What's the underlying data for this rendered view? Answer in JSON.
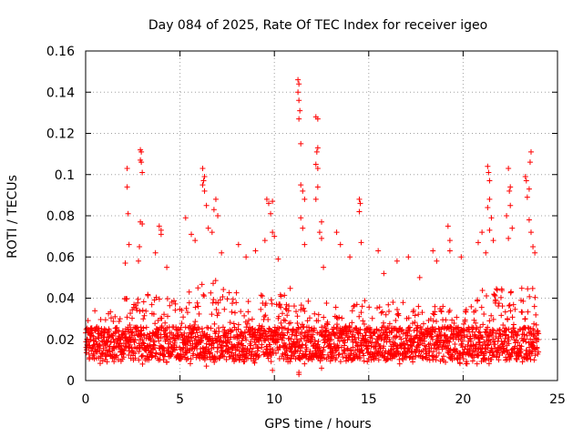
{
  "chart_data": {
    "type": "scatter",
    "title": "Day 084 of 2025, Rate Of TEC Index for receiver igeo",
    "xlabel": "GPS time / hours",
    "ylabel": "ROTI / TECUs",
    "xlim": [
      0,
      25
    ],
    "ylim": [
      0,
      0.16
    ],
    "xticks": [
      0,
      5,
      10,
      15,
      20,
      25
    ],
    "xtick_labels": [
      "0",
      "5",
      "10",
      "15",
      "20",
      "25"
    ],
    "yticks": [
      0,
      0.02,
      0.04,
      0.06,
      0.08,
      0.1,
      0.12,
      0.14,
      0.16
    ],
    "ytick_labels": [
      "0",
      "0.02",
      "0.04",
      "0.06",
      "0.08",
      "0.1",
      "0.12",
      "0.14",
      "0.16"
    ],
    "grid": true,
    "marker": "plus",
    "color": "#ff0000",
    "series": [
      {
        "name": "ROTI",
        "points": [
          [
            2.2,
            0.103
          ],
          [
            2.2,
            0.094
          ],
          [
            2.25,
            0.081
          ],
          [
            2.3,
            0.066
          ],
          [
            2.1,
            0.057
          ],
          [
            2.9,
            0.112
          ],
          [
            2.95,
            0.111
          ],
          [
            2.9,
            0.107
          ],
          [
            2.95,
            0.106
          ],
          [
            3.0,
            0.101
          ],
          [
            2.9,
            0.077
          ],
          [
            3.0,
            0.076
          ],
          [
            2.85,
            0.065
          ],
          [
            2.8,
            0.058
          ],
          [
            3.9,
            0.075
          ],
          [
            4.0,
            0.073
          ],
          [
            4.0,
            0.071
          ],
          [
            3.7,
            0.062
          ],
          [
            4.3,
            0.055
          ],
          [
            5.3,
            0.079
          ],
          [
            5.6,
            0.071
          ],
          [
            5.8,
            0.068
          ],
          [
            6.2,
            0.103
          ],
          [
            6.3,
            0.099
          ],
          [
            6.25,
            0.097
          ],
          [
            6.2,
            0.095
          ],
          [
            6.3,
            0.092
          ],
          [
            6.4,
            0.085
          ],
          [
            6.5,
            0.074
          ],
          [
            6.9,
            0.088
          ],
          [
            6.8,
            0.083
          ],
          [
            7.0,
            0.08
          ],
          [
            6.7,
            0.072
          ],
          [
            7.2,
            0.062
          ],
          [
            8.1,
            0.066
          ],
          [
            8.5,
            0.06
          ],
          [
            9.0,
            0.063
          ],
          [
            9.6,
            0.088
          ],
          [
            9.7,
            0.086
          ],
          [
            9.9,
            0.087
          ],
          [
            9.8,
            0.081
          ],
          [
            9.9,
            0.072
          ],
          [
            10.0,
            0.07
          ],
          [
            9.5,
            0.068
          ],
          [
            10.2,
            0.059
          ],
          [
            11.25,
            0.146
          ],
          [
            11.3,
            0.144
          ],
          [
            11.25,
            0.14
          ],
          [
            11.3,
            0.136
          ],
          [
            11.35,
            0.131
          ],
          [
            11.3,
            0.127
          ],
          [
            11.4,
            0.115
          ],
          [
            11.4,
            0.095
          ],
          [
            11.5,
            0.092
          ],
          [
            11.6,
            0.088
          ],
          [
            11.4,
            0.079
          ],
          [
            11.5,
            0.074
          ],
          [
            11.6,
            0.066
          ],
          [
            12.2,
            0.128
          ],
          [
            12.3,
            0.127
          ],
          [
            12.3,
            0.113
          ],
          [
            12.25,
            0.111
          ],
          [
            12.2,
            0.105
          ],
          [
            12.3,
            0.103
          ],
          [
            12.3,
            0.094
          ],
          [
            12.2,
            0.088
          ],
          [
            12.5,
            0.077
          ],
          [
            12.4,
            0.072
          ],
          [
            12.5,
            0.069
          ],
          [
            12.6,
            0.055
          ],
          [
            13.3,
            0.072
          ],
          [
            13.5,
            0.066
          ],
          [
            14.0,
            0.06
          ],
          [
            14.5,
            0.088
          ],
          [
            14.55,
            0.086
          ],
          [
            14.5,
            0.082
          ],
          [
            14.6,
            0.067
          ],
          [
            15.5,
            0.063
          ],
          [
            15.8,
            0.052
          ],
          [
            16.5,
            0.058
          ],
          [
            17.1,
            0.06
          ],
          [
            17.7,
            0.05
          ],
          [
            18.4,
            0.063
          ],
          [
            18.6,
            0.058
          ],
          [
            19.2,
            0.075
          ],
          [
            19.3,
            0.068
          ],
          [
            19.3,
            0.063
          ],
          [
            19.9,
            0.06
          ],
          [
            20.8,
            0.067
          ],
          [
            21.0,
            0.072
          ],
          [
            21.3,
            0.104
          ],
          [
            21.35,
            0.101
          ],
          [
            21.4,
            0.097
          ],
          [
            21.4,
            0.088
          ],
          [
            21.3,
            0.084
          ],
          [
            21.5,
            0.079
          ],
          [
            21.4,
            0.073
          ],
          [
            21.6,
            0.068
          ],
          [
            21.2,
            0.062
          ],
          [
            22.4,
            0.103
          ],
          [
            22.5,
            0.094
          ],
          [
            22.45,
            0.092
          ],
          [
            22.5,
            0.085
          ],
          [
            22.3,
            0.08
          ],
          [
            22.6,
            0.074
          ],
          [
            22.4,
            0.069
          ],
          [
            23.3,
            0.099
          ],
          [
            23.35,
            0.097
          ],
          [
            23.6,
            0.111
          ],
          [
            23.55,
            0.106
          ],
          [
            23.5,
            0.093
          ],
          [
            23.4,
            0.089
          ],
          [
            23.5,
            0.078
          ],
          [
            23.6,
            0.072
          ],
          [
            23.7,
            0.065
          ],
          [
            23.8,
            0.062
          ],
          [
            11.3,
            0.003
          ],
          [
            11.3,
            0.004
          ],
          [
            9.9,
            0.005
          ],
          [
            12.5,
            0.006
          ],
          [
            6.4,
            0.007
          ]
        ]
      }
    ],
    "dense_band": {
      "description": "dense ROTI cloud across the full day",
      "x_range": [
        0,
        24
      ],
      "median": 0.018,
      "upper_envelope": [
        0.035,
        0.036,
        0.04,
        0.045,
        0.04,
        0.045,
        0.05,
        0.045,
        0.04,
        0.042,
        0.045,
        0.042,
        0.04,
        0.04,
        0.04,
        0.038,
        0.038,
        0.037,
        0.037,
        0.038,
        0.04,
        0.045,
        0.045,
        0.045,
        0.04
      ]
    }
  }
}
